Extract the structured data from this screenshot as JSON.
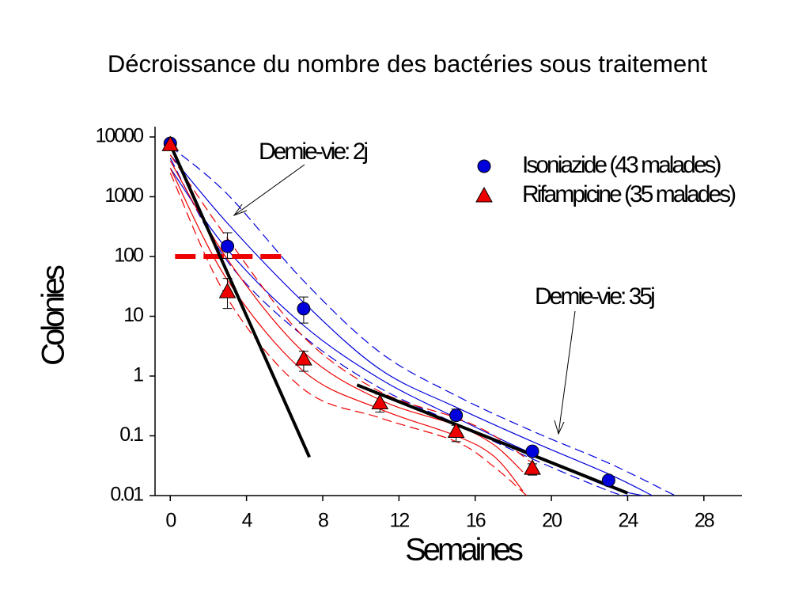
{
  "chart_data": {
    "type": "scatter",
    "title": "Décroissance du nombre des bactéries sous traitement",
    "xlabel": "Semaines",
    "ylabel": "Colonies",
    "yscale": "log",
    "xlim": [
      -0.8,
      30
    ],
    "ylim": [
      0.01,
      10000
    ],
    "xticks": [
      0,
      4,
      8,
      12,
      16,
      20,
      24,
      28
    ],
    "yticks": [
      0.01,
      0.1,
      1,
      10,
      100,
      1000,
      10000
    ],
    "legend": "upper right",
    "series": [
      {
        "name": "Isoniazide (43 malades)",
        "color": "#0000dd",
        "marker": "circle",
        "x": [
          0,
          3,
          7,
          15,
          19,
          23
        ],
        "values": [
          7800,
          148,
          13.4,
          0.22,
          0.055,
          0.018
        ],
        "error_low": [
          7800,
          93,
          7.7,
          0.18,
          0.05,
          0.016
        ],
        "error_high": [
          7800,
          250,
          21,
          0.28,
          0.06,
          0.02
        ]
      },
      {
        "name": "Rifampicine (35 malades)",
        "color": "#ee0000",
        "marker": "triangle",
        "x": [
          0,
          3,
          7,
          11,
          15,
          19
        ],
        "values": [
          7500,
          26,
          1.95,
          0.36,
          0.12,
          0.029
        ],
        "error_low": [
          7500,
          13.5,
          1.2,
          0.25,
          0.08,
          0.022
        ],
        "error_high": [
          7500,
          43,
          2.6,
          0.5,
          0.15,
          0.034
        ]
      }
    ],
    "fits": [
      {
        "color": "#000000",
        "x": [
          0,
          7.3
        ],
        "values": [
          7500,
          0.044
        ]
      },
      {
        "color": "#000000",
        "x": [
          9.8,
          24
        ],
        "values": [
          0.71,
          0.011
        ]
      }
    ],
    "bands": [
      {
        "color": "#0000dd",
        "dashed": true,
        "x": [
          0,
          3,
          7,
          11,
          15,
          19,
          23,
          26.5
        ],
        "values": [
          7000,
          1100,
          39,
          2.5,
          0.47,
          0.12,
          0.035,
          0.01
        ]
      },
      {
        "color": "#0000dd",
        "dashed": false,
        "x": [
          0,
          3,
          7,
          11,
          15,
          19,
          23,
          25.3
        ],
        "values": [
          5000,
          360,
          17,
          1.3,
          0.3,
          0.08,
          0.023,
          0.01
        ]
      },
      {
        "color": "#0000dd",
        "dashed": false,
        "x": [
          0,
          3,
          7,
          11,
          15,
          19,
          23,
          24.8
        ],
        "values": [
          3000,
          130,
          7,
          0.9,
          0.2,
          0.05,
          0.014,
          0.01
        ]
      },
      {
        "color": "#0000dd",
        "dashed": true,
        "x": [
          0,
          3,
          7,
          11,
          15,
          19,
          23,
          24
        ],
        "values": [
          4400,
          83,
          4.6,
          0.63,
          0.16,
          0.041,
          0.012,
          0.01
        ]
      },
      {
        "color": "#ee0000",
        "dashed": true,
        "x": [
          0,
          3,
          7,
          11,
          15,
          17,
          19
        ],
        "values": [
          5000,
          200,
          4.5,
          0.55,
          0.2,
          0.1,
          0.035
        ]
      },
      {
        "color": "#ee0000",
        "dashed": false,
        "x": [
          0,
          3,
          7,
          11,
          15,
          17,
          18.5
        ],
        "values": [
          4000,
          90,
          2.5,
          0.4,
          0.15,
          0.07,
          0.025
        ]
      },
      {
        "color": "#ee0000",
        "dashed": false,
        "x": [
          0,
          3,
          7,
          11,
          15,
          17,
          18.5
        ],
        "values": [
          3000,
          40,
          1.2,
          0.28,
          0.1,
          0.045,
          0.012
        ]
      },
      {
        "color": "#ee0000",
        "dashed": true,
        "x": [
          0,
          3,
          7,
          11,
          15,
          17,
          18.7
        ],
        "values": [
          2500,
          20,
          0.6,
          0.2,
          0.08,
          0.03,
          0.01
        ]
      }
    ],
    "reference": {
      "color": "#ee0000",
      "x": [
        0.25,
        6.2
      ],
      "value": 100
    },
    "annotations": [
      "Demie-vie: 2j",
      "Demie-vie: 35j"
    ]
  }
}
